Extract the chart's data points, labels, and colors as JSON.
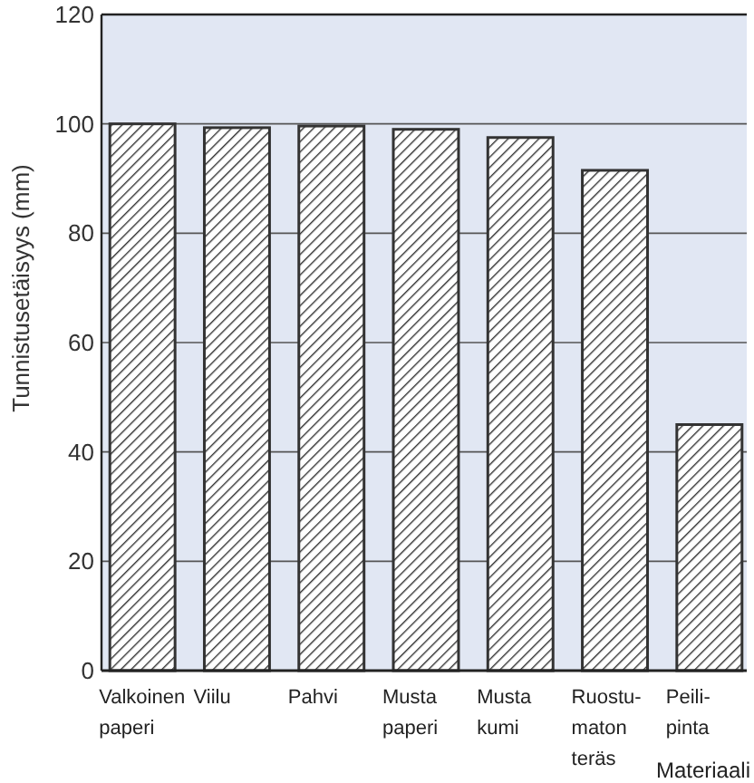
{
  "chart_data": {
    "type": "bar",
    "ylabel": "Tunnistusetäisyys (mm)",
    "xlabel": "Materiaali",
    "categories": [
      "Valkoinen\npaperi",
      "Viilu",
      "Pahvi",
      "Musta\npaperi",
      "Musta\nkumi",
      "Ruostu-\nmaton\nteräs",
      "Peili-\npinta"
    ],
    "values": [
      100,
      99.3,
      99.6,
      99,
      97.5,
      91.5,
      45
    ],
    "color": "#333333",
    "ylim": [
      0,
      120
    ],
    "yticks": [
      0,
      20,
      40,
      60,
      80,
      100,
      120
    ],
    "grid": "y"
  }
}
